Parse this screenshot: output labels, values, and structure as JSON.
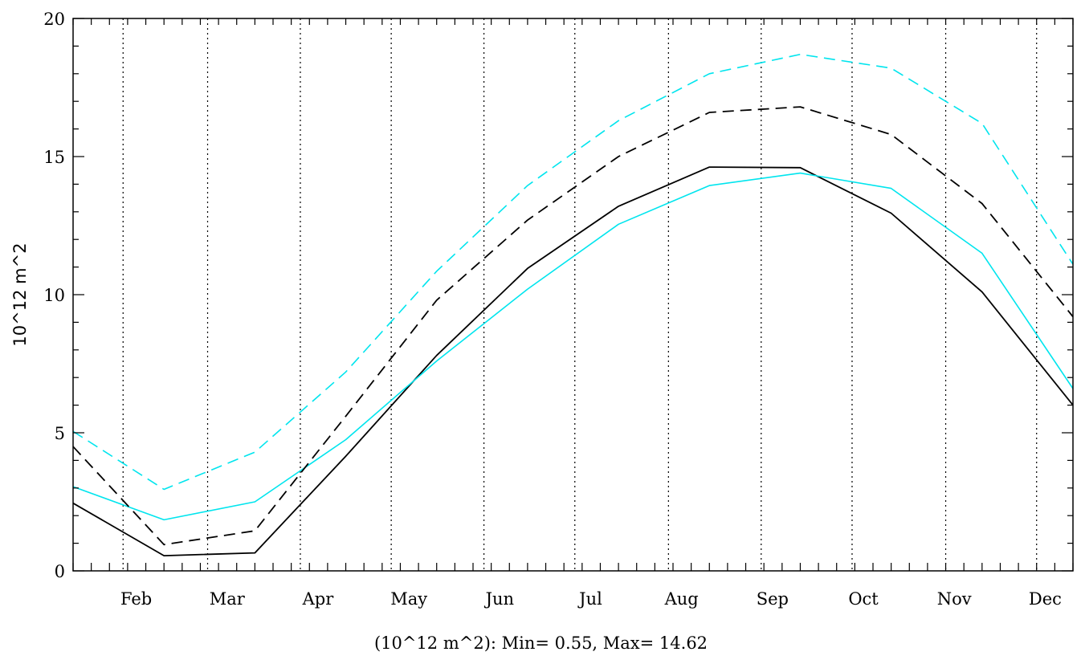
{
  "chart_data": {
    "type": "line",
    "ylabel": "10^12 m^2",
    "caption": "(10^12 m^2): Min= 0.55, Max= 14.62",
    "ylim": [
      0,
      20
    ],
    "y_ticks": [
      "0",
      "5",
      "10",
      "15",
      "20"
    ],
    "xlim": [
      1,
      12
    ],
    "month_labels": [
      {
        "month": 2,
        "label": "Feb"
      },
      {
        "month": 3,
        "label": "Mar"
      },
      {
        "month": 4,
        "label": "Apr"
      },
      {
        "month": 5,
        "label": "May"
      },
      {
        "month": 6,
        "label": "Jun"
      },
      {
        "month": 7,
        "label": "Jul"
      },
      {
        "month": 8,
        "label": "Aug"
      },
      {
        "month": 9,
        "label": "Sep"
      },
      {
        "month": 10,
        "label": "Oct"
      },
      {
        "month": 11,
        "label": "Nov"
      },
      {
        "month": 12,
        "label": "Dec"
      }
    ],
    "month_boundaries": [
      1.55,
      2.48,
      3.5,
      4.5,
      5.52,
      6.52,
      7.55,
      8.57,
      9.57,
      10.6,
      11.6
    ],
    "grid": "vertical dotted month boundaries",
    "x": [
      1.0,
      2.0,
      3.0,
      4.0,
      5.0,
      6.0,
      7.0,
      8.0,
      9.0,
      10.0,
      11.0,
      12.0
    ],
    "series": [
      {
        "color": "#000000",
        "dash": "solid",
        "values": [
          2.45,
          0.55,
          0.65,
          4.15,
          7.8,
          10.95,
          13.2,
          14.62,
          14.6,
          12.95,
          10.1,
          6.0
        ]
      },
      {
        "color": "#00e5ee",
        "dash": "solid",
        "values": [
          3.05,
          1.85,
          2.5,
          4.75,
          7.6,
          10.2,
          12.55,
          13.95,
          14.4,
          13.85,
          11.5,
          6.6
        ]
      },
      {
        "color": "#000000",
        "dash": "dashed",
        "values": [
          4.5,
          0.95,
          1.45,
          5.6,
          9.8,
          12.7,
          15.0,
          16.6,
          16.8,
          15.8,
          13.3,
          9.2
        ]
      },
      {
        "color": "#00e5ee",
        "dash": "dashed",
        "values": [
          5.05,
          2.95,
          4.3,
          7.2,
          10.85,
          13.95,
          16.3,
          18.0,
          18.7,
          18.2,
          16.2,
          11.1
        ]
      }
    ]
  }
}
